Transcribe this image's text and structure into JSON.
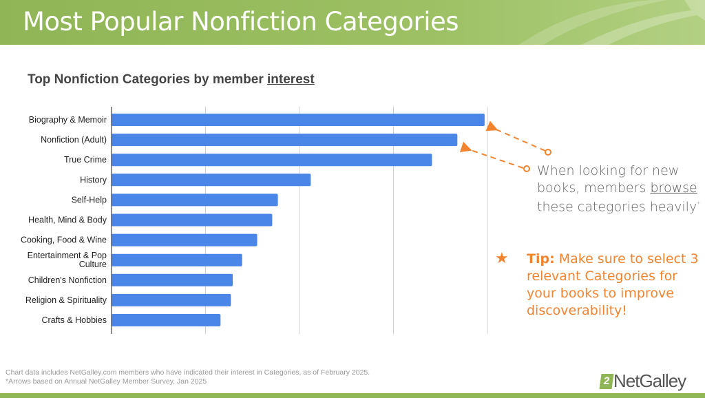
{
  "header": {
    "title": "Most Popular Nonfiction Categories"
  },
  "subtitle": {
    "prefix": "Top Nonfiction Categories by member ",
    "underlined": "interest"
  },
  "chart_data": {
    "type": "bar",
    "orientation": "horizontal",
    "title": "Top Nonfiction Categories by member interest",
    "xlabel": "",
    "ylabel": "",
    "categories": [
      "Biography & Memoir",
      "Nonfiction (Adult)",
      "True Crime",
      "History",
      "Self-Help",
      "Health, Mind & Body",
      "Cooking, Food & Wine",
      "Entertainment & Pop Culture",
      "Children's Nonfiction",
      "Religion & Spirituality",
      "Crafts & Hobbies"
    ],
    "values": [
      3.97,
      3.68,
      3.41,
      2.12,
      1.77,
      1.71,
      1.55,
      1.39,
      1.29,
      1.27,
      1.16
    ],
    "value_units": "relative (gridline intervals; no tick labels shown)",
    "xlim": [
      0,
      4
    ],
    "grid": true,
    "bar_color": "#4a86e8"
  },
  "annotation": {
    "line1": "When looking for new books, members ",
    "underlined": "browse",
    "line2": " these categories heavily",
    "mark": "*",
    "color": "#f28430"
  },
  "tip": {
    "icon": "star-icon",
    "label": "Tip:",
    "text": " Make sure to select 3 relevant Categories for your books to improve discoverability!"
  },
  "footer": {
    "line1": "Chart data includes NetGalley.com members who have indicated their interest in Categories, as of February 2025.",
    "line2": "*Arrows based on Annual NetGalley Member Survey, Jan 2025"
  },
  "logo": {
    "mark": "2",
    "text": "NetGalley"
  },
  "colors": {
    "green": "#8fb556",
    "orange": "#f28430",
    "bar": "#4a86e8"
  }
}
